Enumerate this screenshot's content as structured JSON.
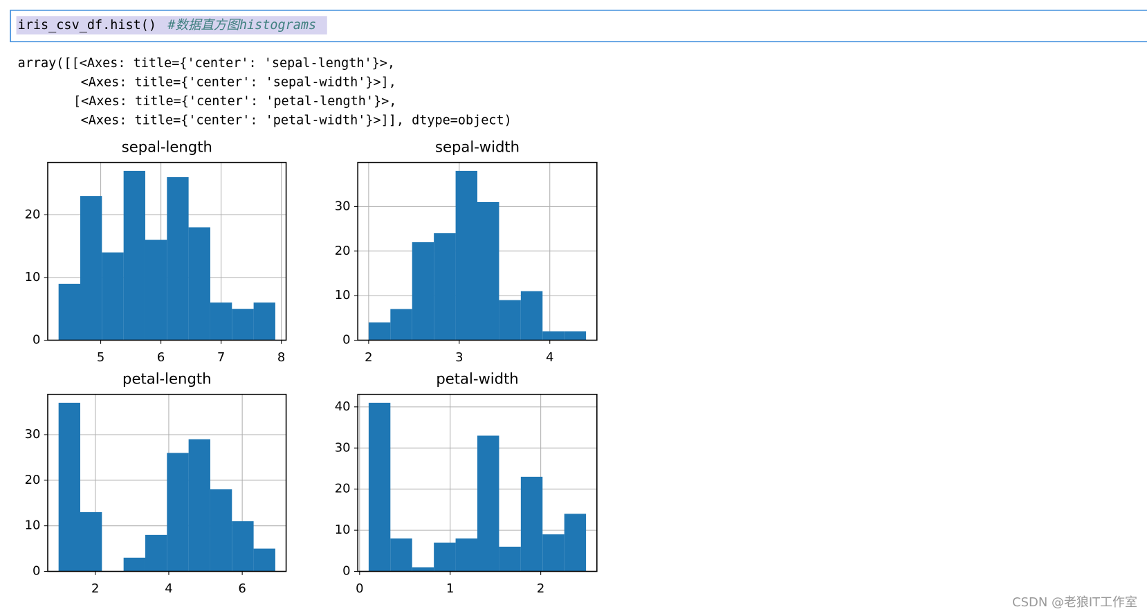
{
  "code": {
    "text": "iris_csv_df.hist()",
    "comment": "#数据直方图histograms"
  },
  "output": [
    "array([[<Axes: title={'center': 'sepal-length'}>,",
    "<Axes: title={'center': 'sepal-width'}>],",
    "[<Axes: title={'center': 'petal-length'}>,",
    "<Axes: title={'center': 'petal-width'}>]], dtype=object)"
  ],
  "watermark": "CSDN @老狼IT工作室",
  "chart_data": [
    {
      "type": "histogram",
      "title": "sepal-length",
      "color": "#1f77b4",
      "grid": true,
      "bins": [
        4.3,
        4.66,
        5.02,
        5.38,
        5.74,
        6.1,
        6.46,
        6.82,
        7.18,
        7.54,
        7.9
      ],
      "counts": [
        9,
        23,
        14,
        27,
        16,
        26,
        18,
        6,
        5,
        6
      ],
      "xlim": [
        4.12,
        8.08
      ],
      "xticks": [
        5,
        6,
        7,
        8
      ],
      "ylim": [
        0,
        28.35
      ],
      "yticks": [
        0,
        10,
        20
      ]
    },
    {
      "type": "histogram",
      "title": "sepal-width",
      "color": "#1f77b4",
      "grid": true,
      "bins": [
        2.0,
        2.24,
        2.48,
        2.72,
        2.96,
        3.2,
        3.44,
        3.68,
        3.92,
        4.16,
        4.4
      ],
      "counts": [
        4,
        7,
        22,
        24,
        38,
        31,
        9,
        11,
        2,
        2
      ],
      "xlim": [
        1.88,
        4.52
      ],
      "xticks": [
        2,
        3,
        4
      ],
      "ylim": [
        0,
        39.9
      ],
      "yticks": [
        0,
        10,
        20,
        30
      ]
    },
    {
      "type": "histogram",
      "title": "petal-length",
      "color": "#1f77b4",
      "grid": true,
      "bins": [
        1.0,
        1.59,
        2.18,
        2.77,
        3.36,
        3.95,
        4.54,
        5.13,
        5.72,
        6.31,
        6.9
      ],
      "counts": [
        37,
        13,
        0,
        3,
        8,
        26,
        29,
        18,
        11,
        5
      ],
      "xlim": [
        0.705,
        7.195
      ],
      "xticks": [
        2,
        4,
        6
      ],
      "ylim": [
        0,
        38.85
      ],
      "yticks": [
        0,
        10,
        20,
        30
      ]
    },
    {
      "type": "histogram",
      "title": "petal-width",
      "color": "#1f77b4",
      "grid": true,
      "bins": [
        0.1,
        0.34,
        0.58,
        0.82,
        1.06,
        1.3,
        1.54,
        1.78,
        2.02,
        2.26,
        2.5
      ],
      "counts": [
        41,
        8,
        1,
        7,
        8,
        33,
        6,
        23,
        9,
        14
      ],
      "xlim": [
        -0.02,
        2.62
      ],
      "xticks": [
        0,
        1,
        2
      ],
      "ylim": [
        0,
        43.05
      ],
      "yticks": [
        0,
        10,
        20,
        30,
        40
      ]
    }
  ]
}
